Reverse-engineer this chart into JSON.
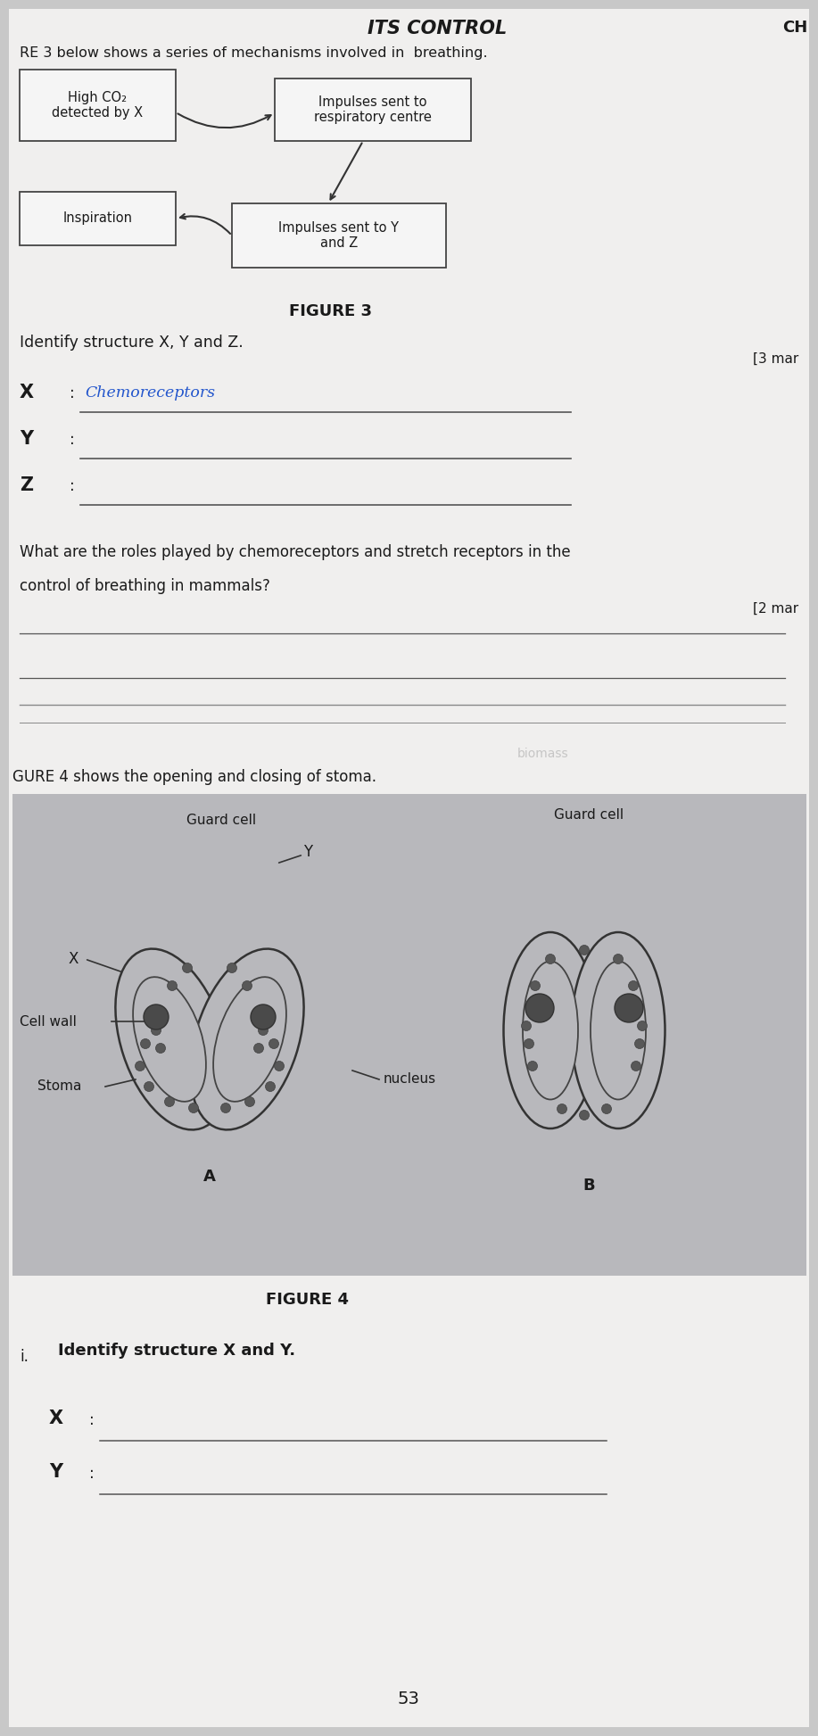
{
  "bg_color": "#c8c8c8",
  "page_bg": "#f0efee",
  "title_top": "ITS CONTROL",
  "header_right": "CH",
  "intro_text": "RE 3 below shows a series of mechanisms involved in  breathing.",
  "box1_label": "High CO₂\ndetected by X",
  "box2_label": "Impulses sent to\nrespiratory centre",
  "box3_label": "Inspiration",
  "box4_label": "Impulses sent to Y\nand Z",
  "figure3_label": "FIGURE 3",
  "identify_text": "Identify structure X, Y and Z.",
  "marks3": "[3 mar",
  "x_answer": "Chemoreceptors",
  "question_text1": "What are the roles played by chemoreceptors and stretch receptors in the",
  "question_text2": "control of breathing in mammals?",
  "marks2": "[2 mar",
  "figure4_intro": "GURE 4 shows the opening and closing of stoma.",
  "figure4_label": "FIGURE 4",
  "fig4_label_A": "A",
  "fig4_label_B": "B",
  "fig4_guardcell_left": "Guard cell",
  "fig4_guardcell_right": "Guard cell",
  "fig4_x": "X",
  "fig4_y": "Y",
  "fig4_cellwall": "Cell wall",
  "fig4_stoma": "Stoma",
  "fig4_nucleus": "nucleus",
  "identify2_intro": "i.",
  "identify2_text": "Identify structure X and Y.",
  "page_num": "53",
  "answer_color": "#2255cc",
  "line_color": "#555555",
  "box_bg": "#f5f5f5",
  "fig4_bg": "#b8b8bc"
}
